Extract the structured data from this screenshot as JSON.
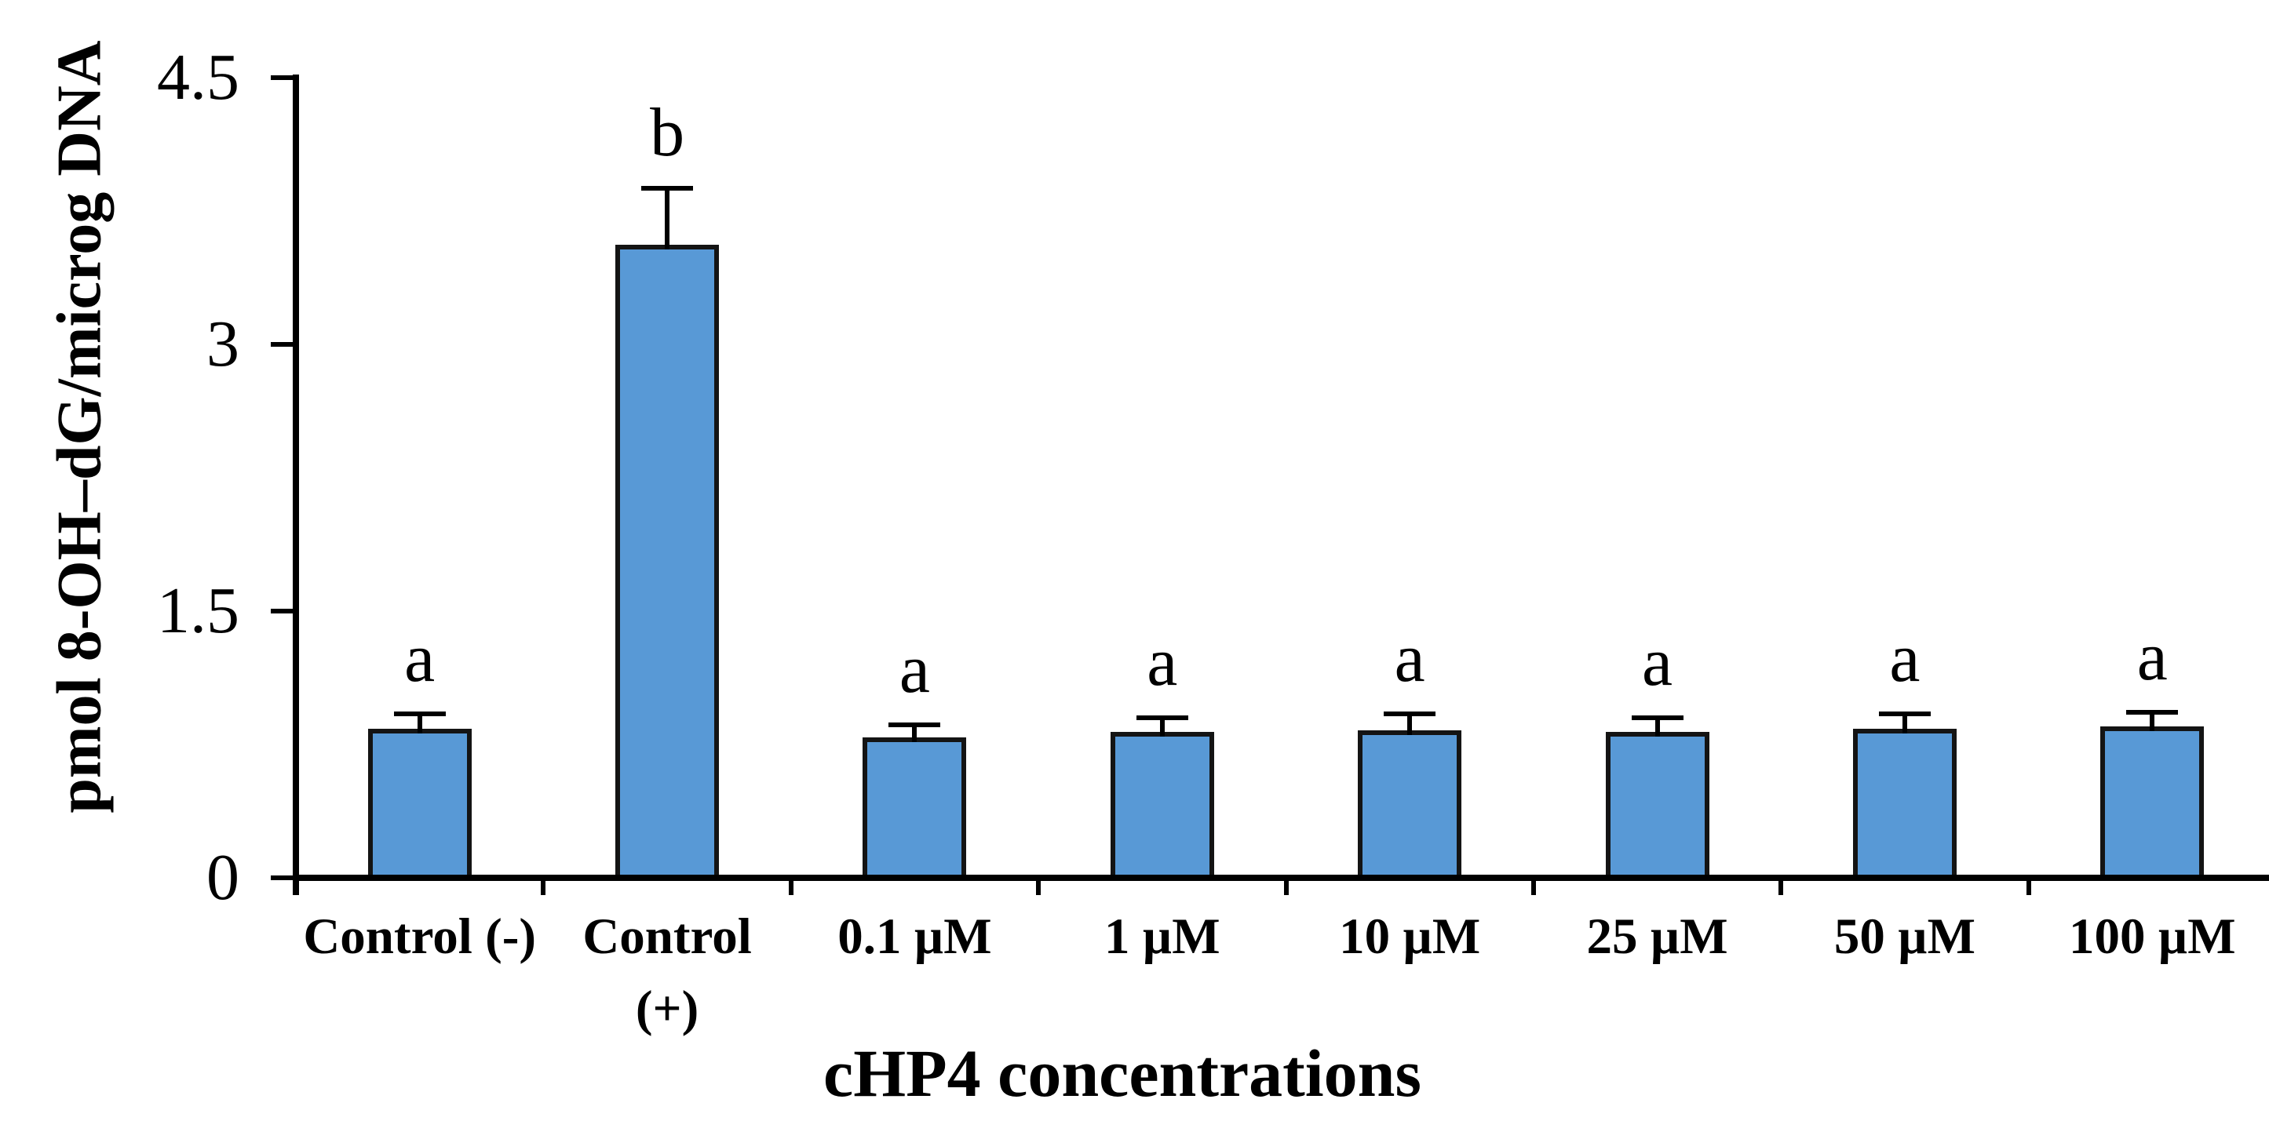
{
  "chart_data": {
    "type": "bar",
    "title": "",
    "categories": [
      "Control (-)",
      "Control (+)",
      "0.1 µM",
      "1 µM",
      "10 µM",
      "25 µM",
      "50 µM",
      "100 µM"
    ],
    "category_lines": [
      [
        "Control (-)"
      ],
      [
        "Control",
        "(+)"
      ],
      [
        "0.1 µM"
      ],
      [
        "1 µM"
      ],
      [
        "10 µM"
      ],
      [
        "25 µM"
      ],
      [
        "50 µM"
      ],
      [
        "100 µM"
      ]
    ],
    "values": [
      0.84,
      3.56,
      0.79,
      0.82,
      0.83,
      0.82,
      0.84,
      0.85
    ],
    "errors_upper": [
      0.08,
      0.32,
      0.07,
      0.08,
      0.09,
      0.08,
      0.08,
      0.08
    ],
    "significance_letters": [
      "a",
      "b",
      "a",
      "a",
      "a",
      "a",
      "a",
      "a"
    ],
    "xlabel": "cHP4 concentrations",
    "ylabel": "pmol 8-OH–dG/microg DNA",
    "yticks": [
      0,
      1.5,
      3,
      4.5
    ],
    "ytick_labels": [
      "0",
      "1.5",
      "3",
      "4.5"
    ],
    "ylim": [
      0,
      4.5
    ],
    "grid": false,
    "legend": "none",
    "colors": {
      "bar_fill": "#5899D6",
      "bar_border": "#141414",
      "axis": "#000000",
      "text": "#000000",
      "background": "#FFFFFF"
    }
  }
}
